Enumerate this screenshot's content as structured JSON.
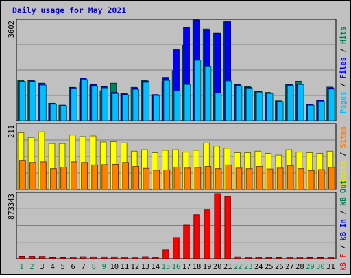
{
  "chart_data": {
    "type": "bar",
    "title": "Daily usage for May 2021",
    "categories": [
      "1",
      "2",
      "3",
      "4",
      "5",
      "6",
      "7",
      "8",
      "9",
      "10",
      "11",
      "12",
      "13",
      "14",
      "15",
      "16",
      "17",
      "18",
      "19",
      "20",
      "21",
      "22",
      "23",
      "24",
      "25",
      "26",
      "27",
      "28",
      "29",
      "30",
      "31"
    ],
    "weekend_days": [
      "1",
      "2",
      "8",
      "9",
      "15",
      "16",
      "22",
      "23",
      "29",
      "30"
    ],
    "panels": [
      {
        "id": "hits-files-pages",
        "scale_label": "3602",
        "ylim": [
          0,
          3602
        ],
        "right_labels": [
          {
            "text": "Pages",
            "color": "#00c0ff"
          },
          {
            "text": "Files",
            "color": "#0000ff"
          },
          {
            "text": "Hits",
            "color": "#00805c"
          }
        ],
        "series": [
          {
            "name": "Hits",
            "color": "#00805c",
            "values": [
              1450,
              1450,
              1350,
              630,
              560,
              1200,
              1360,
              1260,
              1080,
              1350,
              980,
              1200,
              1460,
              940,
              1400,
              1800,
              2700,
              3620,
              3300,
              3150,
              3560,
              1310,
              1220,
              1070,
              1020,
              720,
              1310,
              1420,
              590,
              750,
              1210
            ]
          },
          {
            "name": "Files",
            "color": "#0000ff",
            "values": [
              1420,
              1430,
              1330,
              620,
              560,
              1190,
              1530,
              1300,
              1220,
              1020,
              960,
              1180,
              1430,
              940,
              1560,
              2550,
              3360,
              3620,
              3250,
              3150,
              3560,
              1290,
              1200,
              1050,
              1000,
              700,
              1290,
              1310,
              580,
              740,
              1180
            ]
          },
          {
            "name": "Pages",
            "color": "#00c0ff",
            "values": [
              1400,
              1400,
              1280,
              600,
              540,
              1160,
              1480,
              1240,
              1180,
              980,
              930,
              1130,
              1380,
              910,
              1450,
              1080,
              1300,
              2170,
              1960,
              1000,
              1430,
              1250,
              1170,
              1030,
              980,
              690,
              1260,
              1300,
              560,
              700,
              1140
            ]
          }
        ]
      },
      {
        "id": "visits-sites",
        "scale_label": "211",
        "ylim": [
          0,
          211
        ],
        "right_labels": [
          {
            "text": "Visits",
            "color": "#e6e600"
          },
          {
            "text": "Sites",
            "color": "#ff8000"
          }
        ],
        "series": [
          {
            "name": "Visits",
            "color": "#ffff00",
            "values": [
              185,
              170,
              188,
              150,
              150,
              178,
              173,
              175,
              155,
              156,
              152,
              125,
              130,
              120,
              128,
              130,
              122,
              128,
              152,
              142,
              135,
              120,
              120,
              125,
              118,
              112,
              130,
              122,
              120,
              118,
              125
            ]
          },
          {
            "name": "Sites",
            "color": "#ff8000",
            "values": [
              95,
              88,
              90,
              68,
              73,
              90,
              88,
              80,
              81,
              82,
              88,
              75,
              69,
              63,
              64,
              73,
              70,
              72,
              75,
              68,
              80,
              70,
              68,
              75,
              67,
              70,
              78,
              68,
              62,
              65,
              72
            ]
          }
        ]
      },
      {
        "id": "kbytes",
        "scale_label": "873343",
        "ylim": [
          0,
          873343
        ],
        "right_labels": [
          {
            "text": "kB F",
            "color": "#ff0000"
          },
          {
            "text": "kB In",
            "color": "#0000ff"
          },
          {
            "text": "kB Out",
            "color": "#00805c"
          }
        ],
        "series": [
          {
            "name": "kB F",
            "color": "#ff0000",
            "values": [
              32000,
              31000,
              30000,
              12000,
              12000,
              22000,
              26000,
              24000,
              24000,
              24000,
              21000,
              23000,
              27000,
              18000,
              120000,
              285000,
              450000,
              590000,
              655000,
              873343,
              835000,
              25000,
              22000,
              19000,
              18000,
              15000,
              21000,
              23000,
              11000,
              14000,
              21000
            ]
          }
        ]
      }
    ]
  }
}
